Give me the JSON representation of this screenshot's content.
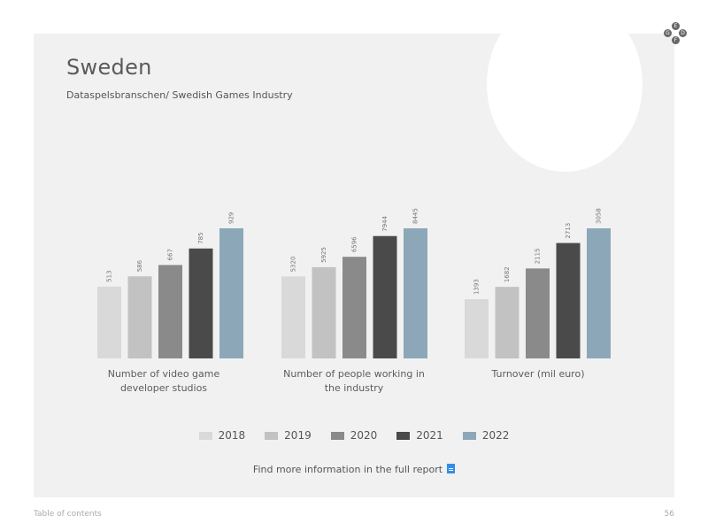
{
  "header": {
    "title": "Sweden",
    "subtitle": "Dataspelsbranschen/ Swedish Games Industry"
  },
  "chart_data": {
    "type": "bar",
    "series_names": [
      "2018",
      "2019",
      "2020",
      "2021",
      "2022"
    ],
    "colors": [
      "#d9d9d9",
      "#c2c2c2",
      "#8a8a8a",
      "#4a4a4a",
      "#8ca8b8"
    ],
    "groups": [
      {
        "label": "Number of video game developer studios",
        "values": [
          513,
          586,
          667,
          785,
          929
        ]
      },
      {
        "label": "Number of people working in the industry",
        "values": [
          5320,
          5925,
          6596,
          7944,
          8445
        ]
      },
      {
        "label": "Turnover (mil euro)",
        "values": [
          1393,
          1682,
          2115,
          2713,
          3058
        ]
      }
    ],
    "legend_position": "bottom",
    "grid": false
  },
  "legend": [
    "2018",
    "2019",
    "2020",
    "2021",
    "2022"
  ],
  "footer_link": "Find more information in the full report",
  "footer": {
    "left": "Table of contents",
    "right": "56"
  },
  "logo_letters": [
    "E",
    "G",
    "D",
    "F"
  ]
}
